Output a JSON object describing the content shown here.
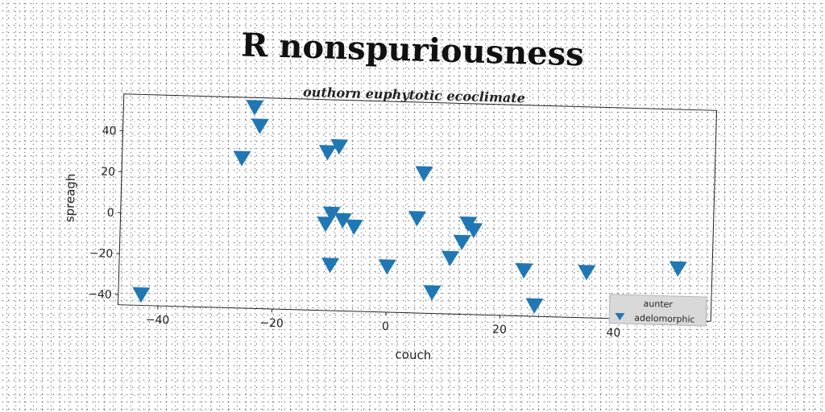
{
  "chart_data": {
    "type": "scatter",
    "title": "R nonspuriousness",
    "subtitle": "outhorn euphytotic ecoclimate",
    "xlabel": "couch",
    "ylabel": "spreagh",
    "xlim": [
      -47,
      57
    ],
    "ylim": [
      -45,
      58
    ],
    "xticks": [
      -40,
      -20,
      0,
      20,
      40
    ],
    "yticks": [
      -40,
      -20,
      0,
      20,
      40
    ],
    "grid": false,
    "legend": {
      "title": "aunter",
      "placement": "bottom-right"
    },
    "series": [
      {
        "name": "adelomorphic",
        "marker": "triangle-down",
        "color": "#2077b4",
        "points": [
          [
            -43,
            -39
          ],
          [
            -24,
            54
          ],
          [
            -23,
            45
          ],
          [
            -26,
            29
          ],
          [
            -11,
            33
          ],
          [
            -9,
            36
          ],
          [
            -10,
            3
          ],
          [
            -11,
            -2
          ],
          [
            -8,
            0
          ],
          [
            -6,
            -3
          ],
          [
            -10,
            -22
          ],
          [
            0,
            -22
          ],
          [
            6,
            24
          ],
          [
            5,
            2
          ],
          [
            8,
            -34
          ],
          [
            11,
            -17
          ],
          [
            13,
            -9
          ],
          [
            14,
            0
          ],
          [
            15,
            -3
          ],
          [
            24,
            -22
          ],
          [
            26,
            -39
          ],
          [
            35,
            -22
          ],
          [
            51,
            -19
          ]
        ]
      }
    ]
  }
}
